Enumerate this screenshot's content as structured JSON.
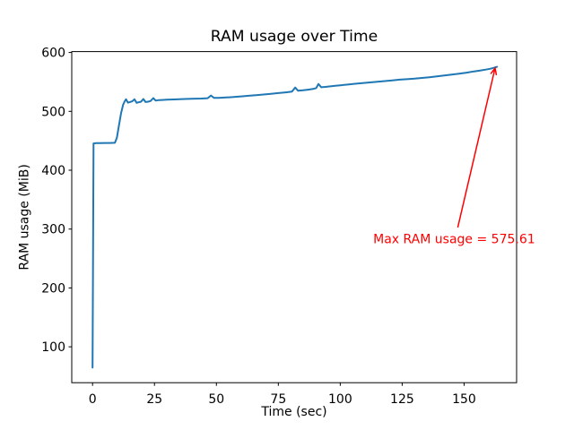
{
  "chart_data": {
    "type": "line",
    "title": "RAM usage over Time",
    "xlabel": "Time (sec)",
    "ylabel": "RAM usage (MiB)",
    "xticks": [
      0,
      25,
      50,
      75,
      100,
      125,
      150
    ],
    "yticks": [
      100,
      200,
      300,
      400,
      500,
      600
    ],
    "xlim": [
      -8.4,
      171.2
    ],
    "ylim": [
      39,
      601.5
    ],
    "grid": false,
    "legend": "none",
    "line_color": "#1f77b4",
    "spine_color": "#000000",
    "text_color": "#000000",
    "max_ram_usage": 575.61,
    "series": [
      {
        "name": "RAM usage",
        "points": [
          [
            0,
            64.6
          ],
          [
            0.4,
            445.5
          ],
          [
            1.5,
            446.0
          ],
          [
            3,
            446.0
          ],
          [
            5,
            446.2
          ],
          [
            7,
            446.3
          ],
          [
            9,
            446.5
          ],
          [
            9.8,
            455
          ],
          [
            10.6,
            475
          ],
          [
            11.5,
            497
          ],
          [
            12.3,
            511
          ],
          [
            12.9,
            516.5
          ],
          [
            13.5,
            520.5
          ],
          [
            14.3,
            514.8
          ],
          [
            15.1,
            515.8
          ],
          [
            16,
            517
          ],
          [
            16.9,
            520.5
          ],
          [
            17.8,
            514.5
          ],
          [
            18.7,
            515.5
          ],
          [
            19.6,
            516.5
          ],
          [
            20.5,
            521
          ],
          [
            21.4,
            515.8
          ],
          [
            22.4,
            516.5
          ],
          [
            23.4,
            517.5
          ],
          [
            24.5,
            522.5
          ],
          [
            25.5,
            518.3
          ],
          [
            26.6,
            519
          ],
          [
            28,
            519.3
          ],
          [
            30,
            519.8
          ],
          [
            33,
            520.3
          ],
          [
            36,
            520.8
          ],
          [
            40,
            521.3
          ],
          [
            44,
            521.8
          ],
          [
            46.5,
            522.3
          ],
          [
            47.8,
            527
          ],
          [
            49,
            523
          ],
          [
            51,
            523
          ],
          [
            54,
            523.6
          ],
          [
            57,
            524.4
          ],
          [
            60,
            525.4
          ],
          [
            63,
            526.4
          ],
          [
            66,
            527.5
          ],
          [
            69,
            528.6
          ],
          [
            72,
            529.8
          ],
          [
            75,
            531
          ],
          [
            78,
            532.3
          ],
          [
            80.5,
            533.5
          ],
          [
            81.8,
            540.5
          ],
          [
            83,
            535
          ],
          [
            85,
            535.8
          ],
          [
            87,
            536.8
          ],
          [
            89,
            538
          ],
          [
            90.3,
            539.5
          ],
          [
            91.2,
            546.5
          ],
          [
            92.3,
            541
          ],
          [
            94,
            541.5
          ],
          [
            96,
            542.4
          ],
          [
            98,
            543.3
          ],
          [
            100,
            544.2
          ],
          [
            103,
            545.5
          ],
          [
            106,
            546.8
          ],
          [
            109,
            548
          ],
          [
            112,
            549.2
          ],
          [
            115,
            550.4
          ],
          [
            118,
            551.5
          ],
          [
            121,
            552.6
          ],
          [
            124,
            553.8
          ],
          [
            127,
            554.6
          ],
          [
            130,
            555.6
          ],
          [
            133,
            556.8
          ],
          [
            136,
            558
          ],
          [
            139,
            559.4
          ],
          [
            142,
            560.8
          ],
          [
            145,
            562.4
          ],
          [
            148,
            564
          ],
          [
            151,
            565.8
          ],
          [
            154,
            567.8
          ],
          [
            156.5,
            569.4
          ],
          [
            158.5,
            570.8
          ],
          [
            160.5,
            572.3
          ],
          [
            162,
            574
          ],
          [
            163.3,
            575.61
          ]
        ]
      }
    ],
    "annotation": {
      "text": "Max RAM usage = 575.61",
      "color": "#ff0000",
      "arrow_tip_xy": [
        162.5,
        573.5
      ],
      "text_center_xy": [
        146,
        283
      ]
    }
  }
}
